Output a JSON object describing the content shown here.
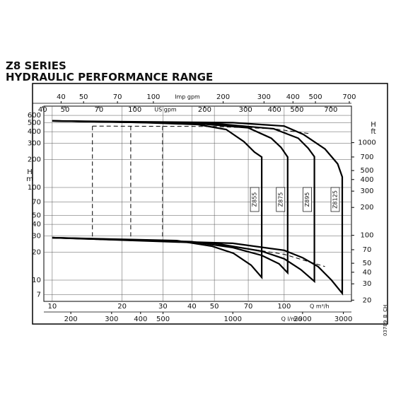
{
  "chart_data": {
    "type": "line",
    "title": "Z8 SERIES",
    "subtitle": "HYDRAULIC PERFORMANCE RANGE",
    "code": "03789_B_CH",
    "log_x": true,
    "log_y": true,
    "grid": true,
    "x_label": "Q m³/h",
    "xlim": [
      9.2,
      195
    ],
    "xticks": [
      10,
      20,
      30,
      40,
      50,
      70,
      100
    ],
    "y_label": "H",
    "y_unit": "m",
    "ylim": [
      5.9,
      755
    ],
    "yticks": [
      7,
      10,
      20,
      30,
      40,
      50,
      70,
      100,
      200,
      300,
      400,
      500,
      600
    ],
    "y2_label": "H",
    "y2_unit": "ft",
    "y2lim": [
      19.4,
      2477
    ],
    "y2ticks": [
      20,
      30,
      40,
      50,
      70,
      100,
      200,
      300,
      400,
      500,
      700,
      1000
    ],
    "secondary_x_axes": [
      {
        "label": "Imp gpm",
        "position": "top",
        "xlim": [
          33.7,
          715
        ],
        "xticks": [
          40,
          50,
          70,
          100,
          200,
          300,
          400,
          500,
          700
        ]
      },
      {
        "label": "US gpm",
        "position": "top",
        "xlim": [
          40.5,
          859
        ],
        "xticks": [
          40,
          50,
          70,
          100,
          200,
          300,
          400,
          500,
          700
        ]
      },
      {
        "label": "Q l/min",
        "position": "bottom",
        "xlim": [
          153,
          3250
        ],
        "xticks": [
          200,
          300,
          400,
          500,
          1000,
          2000,
          3000
        ]
      }
    ],
    "series": [
      {
        "name": "Z855",
        "color": "#000000",
        "x": [
          10,
          24.2,
          42.4,
          56.2,
          67,
          74.5,
          80,
          80,
          72,
          60.4,
          48.9,
          34.4,
          10
        ],
        "y": [
          523,
          503,
          478,
          423,
          313,
          241,
          213,
          10.7,
          14.5,
          19.5,
          23.2,
          26.7,
          28.7
        ]
      },
      {
        "name": "Z875",
        "color": "#000000",
        "x": [
          10,
          42.4,
          70,
          88,
          97,
          103.5,
          103.5,
          95,
          80,
          60,
          40,
          10
        ],
        "y": [
          523,
          490,
          440,
          340,
          270,
          213,
          12,
          15,
          18.5,
          22.5,
          26,
          28.7
        ]
      },
      {
        "name": "Z895",
        "color": "#000000",
        "x": [
          10,
          50,
          90,
          115,
          127,
          135,
          135,
          118,
          100,
          80,
          50,
          10
        ],
        "y": [
          523,
          490,
          430,
          340,
          265,
          215,
          9.7,
          13,
          17,
          20.5,
          25,
          28.7
        ]
      },
      {
        "name": "Z8125",
        "color": "#000000",
        "x": [
          10,
          60,
          100,
          121,
          150,
          170,
          178,
          178,
          160,
          140,
          120,
          100,
          60,
          10
        ],
        "y": [
          523,
          500,
          460,
          374,
          260,
          180,
          130,
          7.2,
          10,
          14,
          17.5,
          21,
          25,
          28.7
        ]
      },
      {
        "color": "#000000",
        "dashed": true,
        "x": [
          14.9,
          50,
          90,
          130
        ],
        "y": [
          460,
          455,
          430,
          380
        ]
      },
      {
        "color": "#000000",
        "dashed": true,
        "x": [
          14.9,
          50,
          100,
          150
        ],
        "y": [
          27.5,
          25,
          19,
          14
        ]
      },
      {
        "color": "#000000",
        "dashed": true,
        "x": [
          14.9,
          14.9
        ],
        "y": [
          460,
          27.5
        ]
      },
      {
        "color": "#000000",
        "dashed": true,
        "x": [
          21.8,
          21.8
        ],
        "y": [
          460,
          27.5
        ]
      },
      {
        "color": "#000000",
        "dashed": true,
        "x": [
          29.9,
          29.9
        ],
        "y": [
          460,
          27.5
        ]
      }
    ]
  }
}
